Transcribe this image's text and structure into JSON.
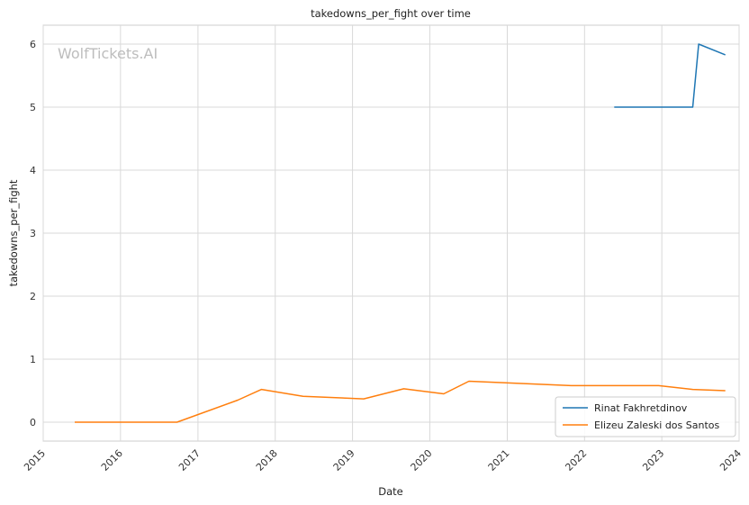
{
  "watermark": "WolfTickets.AI",
  "colors": {
    "series_1": "#1f77b4",
    "series_2": "#ff7f0e"
  },
  "chart_data": {
    "type": "line",
    "title": "takedowns_per_fight over time",
    "xlabel": "Date",
    "ylabel": "takedowns_per_fight",
    "xlim": [
      "2015-01-01",
      "2024-01-01"
    ],
    "ylim": [
      -0.3,
      6.3
    ],
    "x_ticks": [
      "2015",
      "2016",
      "2017",
      "2018",
      "2019",
      "2020",
      "2021",
      "2022",
      "2023",
      "2024"
    ],
    "y_ticks": [
      "0",
      "1",
      "2",
      "3",
      "4",
      "5",
      "6"
    ],
    "grid": true,
    "legend_position": "lower-right",
    "series": [
      {
        "name": "Rinat Fakhretdinov",
        "x": [
          "2022-05-21",
          "2022-09-03",
          "2023-05-27",
          "2023-06-24",
          "2023-10-28"
        ],
        "y": [
          5.0,
          5.0,
          5.0,
          6.0,
          5.83
        ]
      },
      {
        "name": "Elizeu Zaleski dos Santos",
        "x": [
          "2015-05-30",
          "2016-01-15",
          "2016-09-24",
          "2017-07-08",
          "2017-10-28",
          "2018-05-12",
          "2019-02-23",
          "2019-08-31",
          "2020-03-07",
          "2020-07-04",
          "2021-10-30",
          "2022-06-25",
          "2022-12-17",
          "2023-05-27",
          "2023-10-28"
        ],
        "y": [
          0.0,
          0.0,
          0.0,
          0.35,
          0.52,
          0.41,
          0.37,
          0.53,
          0.45,
          0.65,
          0.58,
          0.58,
          0.58,
          0.52,
          0.5
        ]
      }
    ]
  }
}
